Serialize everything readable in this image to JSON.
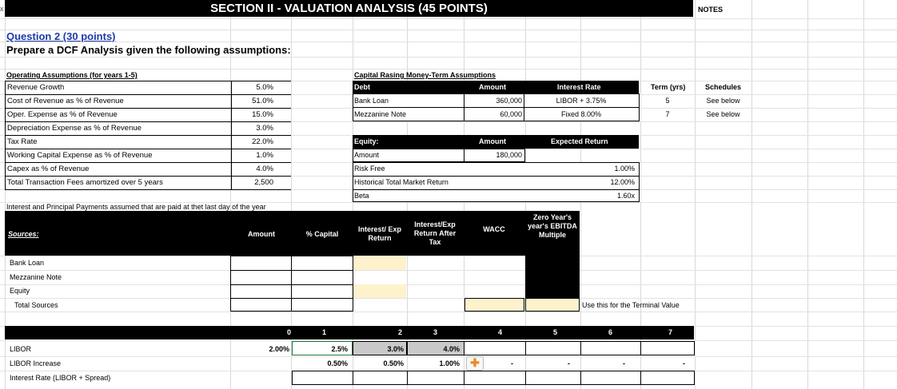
{
  "header": {
    "title": "SECTION II - VALUATION ANALYSIS (45 POINTS)",
    "notes": "NOTES",
    "corner": "x"
  },
  "question": {
    "title": "Question 2 (30 points)",
    "subtitle": "Prepare a DCF Analysis given the following assumptions:"
  },
  "operating": {
    "title": "Operating Assumptions (for years 1-5)",
    "rows": [
      {
        "label": "Revenue Growth",
        "value": "5.0%"
      },
      {
        "label": "Cost of Revenue as % of Revenue",
        "value": "51.0%"
      },
      {
        "label": "Oper. Expense as % of Revenue",
        "value": "15.0%"
      },
      {
        "label": "Depreciation Expense as % of Revenue",
        "value": "3.0%"
      },
      {
        "label": "Tax Rate",
        "value": "22.0%"
      },
      {
        "label": "Working Capital Expense as % of Revenue",
        "value": "1.0%"
      },
      {
        "label": "Capex as % of Revenue",
        "value": "4.0%"
      },
      {
        "label": "Total Transaction Fees amortized over 5 years",
        "value": "2,500"
      }
    ]
  },
  "capital": {
    "title": "Capital Rasing Money-Term Assumptions",
    "headers": {
      "debt": "Debt",
      "amount": "Amount",
      "rate": "Interest Rate",
      "term": "Term (yrs)",
      "schedules": "Schedules"
    },
    "rows": [
      {
        "debt": "Bank Loan",
        "amount": "360,000",
        "rate": "LIBOR + 3.75%",
        "term": "5",
        "schedules": "See below"
      },
      {
        "debt": "Mezzanine Note",
        "amount": "60,000",
        "rate": "Fixed 8.00%",
        "term": "7",
        "schedules": "See below"
      }
    ]
  },
  "equity": {
    "headers": {
      "equity": "Equity:",
      "amount": "Amount",
      "ret": "Expected Return"
    },
    "rows": [
      {
        "label": "Amount",
        "value": "180,000"
      },
      {
        "label": "Risk Free",
        "value": "1.00%"
      },
      {
        "label": "Historical Total Market Return",
        "value": "12.00%"
      },
      {
        "label": "Beta",
        "value": "1.60x"
      }
    ]
  },
  "note": "Interest and Principal Payments assumed that are paid at thet last day of the year",
  "sources": {
    "title": "Sources:",
    "headers": {
      "amount": "Amount",
      "capital": "% Capital",
      "ret": "Interest/ Exp Return",
      "after": "Interest/Exp Return After Tax",
      "wacc": "WACC",
      "zero": "Zero Year's year's EBITDA Multiple"
    },
    "rows": [
      "Bank Loan",
      "Mezzanine Note",
      "Equity"
    ],
    "total": "Total Sources",
    "terminal_note": "Use this for the Terminal Value"
  },
  "schedule": {
    "years": [
      "0",
      "1",
      "2",
      "3",
      "4",
      "5",
      "6",
      "7"
    ],
    "rows": [
      {
        "label": "LIBOR",
        "values": [
          "2.00%",
          "2.5%",
          "3.0%",
          "4.0%",
          "",
          "",
          "",
          ""
        ]
      },
      {
        "label": "LIBOR Increase",
        "values": [
          "",
          "0.50%",
          "0.50%",
          "1.00%",
          "-",
          "-",
          "-",
          "-"
        ]
      },
      {
        "label": "Interest Rate (LIBOR + Spread)",
        "values": [
          "",
          "",
          "",
          "",
          "",
          "",
          "",
          ""
        ]
      }
    ]
  }
}
